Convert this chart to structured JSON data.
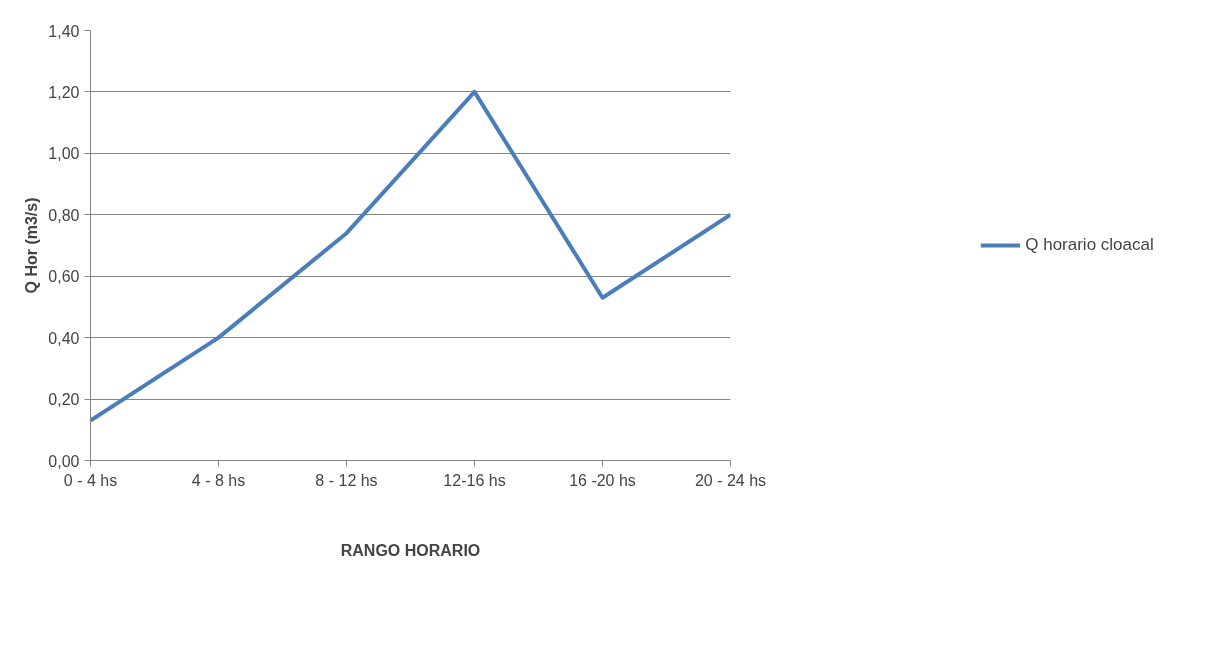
{
  "chart_data": {
    "type": "line",
    "xlabel": "RANGO HORARIO",
    "ylabel": "Q Hor (m3/s)",
    "categories": [
      "0 - 4 hs",
      "4 - 8 hs",
      "8 - 12 hs",
      "12-16 hs",
      "16 -20 hs",
      "20 - 24 hs"
    ],
    "series": [
      {
        "name": "Q horario cloacal",
        "color": "#4a7ebb",
        "values": [
          0.13,
          0.4,
          0.74,
          1.2,
          0.53,
          0.8
        ]
      }
    ],
    "ylim": [
      0,
      1.4
    ],
    "yticks": [
      {
        "value": 0,
        "label": "0,00"
      },
      {
        "value": 0.2,
        "label": "0,20"
      },
      {
        "value": 0.4,
        "label": "0,40"
      },
      {
        "value": 0.6,
        "label": "0,60"
      },
      {
        "value": 0.8,
        "label": "0,80"
      },
      {
        "value": 1.0,
        "label": "1,00"
      },
      {
        "value": 1.2,
        "label": "1,20"
      },
      {
        "value": 1.4,
        "label": "1,40"
      }
    ],
    "grid": "y",
    "legend": "right",
    "marker": "none",
    "line_style": "solid"
  }
}
